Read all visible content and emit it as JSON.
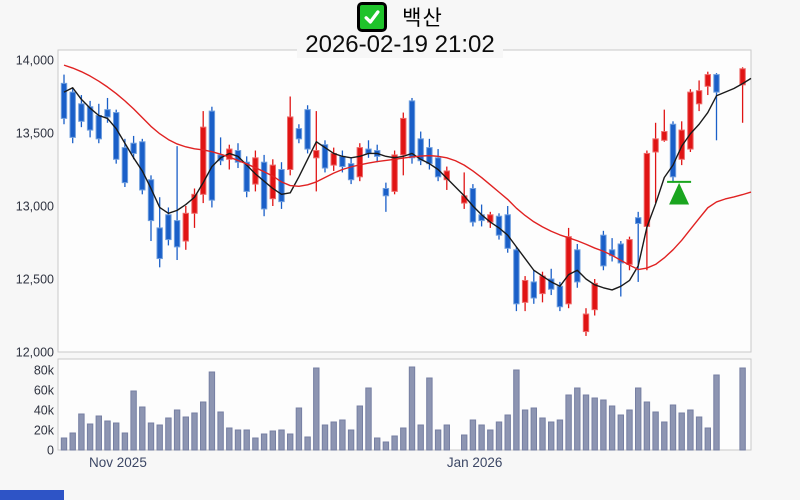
{
  "header": {
    "title": "백산",
    "subtitle": "2026-02-19 21:02",
    "checkbox_checked": true
  },
  "colors": {
    "up": "#e01414",
    "up_border": "#ee6a6a",
    "down": "#1a5fc8",
    "down_border": "#6f9ede",
    "ma_fast": "#1a1a1a",
    "ma_slow": "#e02222",
    "volume_bar": "#8d95b2",
    "volume_bar_border": "#767fa2",
    "marker_green": "#1aa51f",
    "checkbox_green": "#1fc32b",
    "scrollbar_blue": "#2e54c6"
  },
  "chart_data": {
    "type": "candlestick+volume",
    "title": "백산",
    "timestamp": "2026-02-19 21:02",
    "grid": false,
    "price_axis": {
      "min": 12000,
      "max": 14000,
      "ticks": [
        {
          "label": "14,000",
          "value": 14000
        },
        {
          "label": "13,500",
          "value": 13500
        },
        {
          "label": "13,000",
          "value": 13000
        },
        {
          "label": "12,500",
          "value": 12500
        },
        {
          "label": "12,000",
          "value": 12000
        }
      ]
    },
    "volume_axis": {
      "min": 0,
      "max_k": 88,
      "ticks": [
        {
          "label": "80k",
          "value_k": 80
        },
        {
          "label": "60k",
          "value_k": 60
        },
        {
          "label": "40k",
          "value_k": 40
        },
        {
          "label": "20k",
          "value_k": 20
        },
        {
          "label": "0",
          "value_k": 0
        }
      ]
    },
    "x_axis_labels": [
      {
        "label": "Nov 2025",
        "index": 6.2
      },
      {
        "label": "Jan 2026",
        "index": 47.2
      }
    ],
    "series": {
      "candles_ohlc": [
        [
          13840,
          13900,
          13560,
          13600
        ],
        [
          13780,
          13810,
          13430,
          13470
        ],
        [
          13700,
          13760,
          13540,
          13580
        ],
        [
          13680,
          13720,
          13470,
          13520
        ],
        [
          13620,
          13700,
          13430,
          13460
        ],
        [
          13660,
          13740,
          13570,
          13610
        ],
        [
          13640,
          13660,
          13290,
          13320
        ],
        [
          13400,
          13460,
          13130,
          13160
        ],
        [
          13430,
          13480,
          13320,
          13360
        ],
        [
          13440,
          13460,
          13080,
          13110
        ],
        [
          13180,
          13210,
          12760,
          12900
        ],
        [
          12850,
          13060,
          12580,
          12640
        ],
        [
          12940,
          12990,
          12730,
          12770
        ],
        [
          12900,
          13410,
          12630,
          12720
        ],
        [
          12760,
          13000,
          12700,
          12950
        ],
        [
          12950,
          13120,
          12850,
          13080
        ],
        [
          13080,
          13650,
          13020,
          13540
        ],
        [
          13650,
          13680,
          12990,
          13040
        ],
        [
          13350,
          13470,
          13280,
          13310
        ],
        [
          13320,
          13420,
          13250,
          13390
        ],
        [
          13380,
          13430,
          13260,
          13300
        ],
        [
          13300,
          13340,
          13060,
          13100
        ],
        [
          13150,
          13380,
          13100,
          13330
        ],
        [
          13300,
          13350,
          12930,
          12980
        ],
        [
          13050,
          13320,
          13000,
          13280
        ],
        [
          13250,
          13300,
          12980,
          13030
        ],
        [
          13250,
          13750,
          13210,
          13610
        ],
        [
          13530,
          13560,
          13430,
          13460
        ],
        [
          13660,
          13690,
          13360,
          13390
        ],
        [
          13330,
          13650,
          13100,
          13380
        ],
        [
          13420,
          13450,
          13230,
          13260
        ],
        [
          13280,
          13400,
          13240,
          13360
        ],
        [
          13340,
          13380,
          13230,
          13270
        ],
        [
          13290,
          13330,
          13150,
          13180
        ],
        [
          13200,
          13430,
          13170,
          13400
        ],
        [
          13390,
          13450,
          13330,
          13360
        ],
        [
          13380,
          13420,
          13300,
          13340
        ],
        [
          13120,
          13160,
          12960,
          13070
        ],
        [
          13100,
          13380,
          13080,
          13350
        ],
        [
          13350,
          13640,
          13210,
          13600
        ],
        [
          13720,
          13740,
          13290,
          13330
        ],
        [
          13460,
          13510,
          13280,
          13310
        ],
        [
          13400,
          13460,
          13250,
          13290
        ],
        [
          13330,
          13390,
          13170,
          13200
        ],
        [
          13180,
          13270,
          13110,
          13240
        ],
        null,
        [
          13020,
          13230,
          12980,
          13070
        ],
        [
          13120,
          13150,
          12860,
          12890
        ],
        [
          12940,
          13010,
          12860,
          12900
        ],
        [
          12890,
          12960,
          12850,
          12940
        ],
        [
          12930,
          12950,
          12770,
          12800
        ],
        [
          12940,
          13000,
          12680,
          12710
        ],
        [
          12700,
          12720,
          12280,
          12330
        ],
        [
          12340,
          12520,
          12280,
          12490
        ],
        [
          12480,
          12560,
          12330,
          12370
        ],
        [
          12400,
          12550,
          12340,
          12520
        ],
        [
          12500,
          12570,
          12390,
          12430
        ],
        [
          12450,
          12480,
          12280,
          12310
        ],
        [
          12330,
          12850,
          12300,
          12790
        ],
        [
          12700,
          12740,
          12440,
          12480
        ],
        [
          12140,
          12300,
          12110,
          12260
        ],
        [
          12290,
          12500,
          12250,
          12470
        ],
        [
          12800,
          12830,
          12560,
          12590
        ],
        [
          12700,
          12780,
          12620,
          12660
        ],
        [
          12740,
          12760,
          12380,
          12610
        ],
        [
          12600,
          12790,
          12560,
          12770
        ],
        [
          12920,
          12960,
          12480,
          12880
        ],
        [
          12860,
          13380,
          12560,
          13360
        ],
        [
          13370,
          13570,
          13020,
          13460
        ],
        [
          13450,
          13660,
          13440,
          13510
        ],
        [
          13560,
          13580,
          13160,
          13200
        ],
        [
          13320,
          13580,
          13280,
          13520
        ],
        [
          13390,
          13800,
          13370,
          13780
        ],
        [
          13700,
          13860,
          13650,
          13790
        ],
        [
          13820,
          13920,
          13760,
          13900
        ],
        [
          13900,
          13910,
          13450,
          13780
        ],
        null,
        null,
        [
          13830,
          13950,
          13570,
          13940
        ]
      ],
      "volumes_k": [
        12,
        17,
        36,
        26,
        34,
        29,
        27,
        17,
        59,
        43,
        27,
        25,
        32,
        40,
        33,
        37,
        48,
        78,
        38,
        22,
        20,
        20,
        12,
        16,
        19,
        20,
        16,
        42,
        13,
        82,
        25,
        28,
        30,
        20,
        44,
        62,
        12,
        8,
        14,
        22,
        83,
        25,
        72,
        20,
        25,
        null,
        15,
        30,
        25,
        20,
        28,
        35,
        80,
        40,
        42,
        32,
        28,
        30,
        55,
        62,
        55,
        52,
        50,
        44,
        35,
        40,
        62,
        48,
        38,
        28,
        45,
        37,
        40,
        33,
        22,
        75,
        null,
        null,
        82
      ],
      "ma_fast": [
        13780,
        13810,
        13730,
        13670,
        13620,
        13600,
        13530,
        13430,
        13330,
        13240,
        13120,
        12990,
        12950,
        12970,
        13010,
        13060,
        13160,
        13270,
        13330,
        13360,
        13340,
        13280,
        13220,
        13170,
        13120,
        13080,
        13090,
        13200,
        13320,
        13440,
        13400,
        13360,
        13340,
        13330,
        13340,
        13360,
        13360,
        13340,
        13330,
        13340,
        13360,
        13320,
        13290,
        13250,
        13190,
        13130,
        13070,
        13000,
        12940,
        12890,
        12850,
        12800,
        12720,
        12640,
        12560,
        12520,
        12480,
        12450,
        12530,
        12560,
        12500,
        12460,
        12440,
        12425,
        12450,
        12490,
        12590,
        12855,
        13015,
        13195,
        13280,
        13410,
        13495,
        13560,
        13640,
        13755,
        13780,
        13805,
        13838
      ],
      "ma_slow": [
        13965,
        13945,
        13920,
        13890,
        13855,
        13815,
        13770,
        13720,
        13665,
        13605,
        13545,
        13495,
        13455,
        13425,
        13405,
        13392,
        13384,
        13372,
        13355,
        13335,
        13312,
        13288,
        13262,
        13235,
        13205,
        13165,
        13140,
        13135,
        13145,
        13165,
        13195,
        13225,
        13250,
        13268,
        13282,
        13294,
        13304,
        13312,
        13320,
        13328,
        13336,
        13342,
        13345,
        13340,
        13330,
        13310,
        13280,
        13240,
        13195,
        13145,
        13095,
        13045,
        12985,
        12935,
        12892,
        12857,
        12827,
        12802,
        12782,
        12762,
        12738,
        12712,
        12690,
        12662,
        12628,
        12595,
        12565,
        12575,
        12600,
        12645,
        12700,
        12765,
        12840,
        12915,
        12988,
        13028,
        13048,
        13062,
        13078
      ]
    },
    "marker": {
      "type": "buy-triangle",
      "index": 70.7,
      "apex_price": 13165,
      "base_price": 13010,
      "half_width": 10,
      "line_half_width": 12
    }
  }
}
